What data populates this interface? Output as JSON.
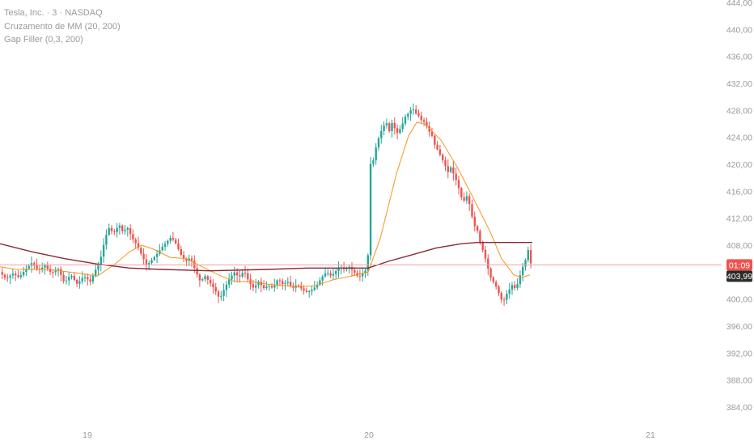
{
  "legend": {
    "symbol": "Tesla, Inc. · 3 · NASDAQ",
    "indicator_ma": "Cruzamento de MM (20, 200)",
    "indicator_gap": "Gap Filler (0,3, 200)"
  },
  "price_labels": {
    "countdown": "01:09",
    "last_price": "403,99"
  },
  "colors": {
    "up": "#26a69a",
    "down": "#ef5350",
    "ma20": "#f7931e",
    "ma200": "#8b2a35",
    "price_line": "#f2a0a0",
    "axis_text": "#9a9a9a"
  },
  "chart_data": {
    "type": "candlestick",
    "symbol": "Tesla, Inc.",
    "interval": "3",
    "exchange": "NASDAQ",
    "ylim": [
      382,
      444
    ],
    "y_ticks": [
      "444,00",
      "440,00",
      "436,00",
      "432,00",
      "428,00",
      "424,00",
      "420,00",
      "416,00",
      "412,00",
      "408,00",
      "400,00",
      "396,00",
      "392,00",
      "388,00",
      "384,00"
    ],
    "x_ticks": [
      "19",
      "20",
      "21"
    ],
    "last_price": 403.99,
    "price_points": [
      [
        0,
        404.0
      ],
      [
        8,
        403.0
      ],
      [
        16,
        403.8
      ],
      [
        24,
        403.2
      ],
      [
        32,
        404.4
      ],
      [
        40,
        405.4
      ],
      [
        48,
        404.2
      ],
      [
        56,
        405.0
      ],
      [
        64,
        403.8
      ],
      [
        72,
        404.6
      ],
      [
        80,
        402.4
      ],
      [
        88,
        403.6
      ],
      [
        96,
        402.2
      ],
      [
        104,
        403.4
      ],
      [
        112,
        402.6
      ],
      [
        118,
        404.2
      ],
      [
        124,
        405.6
      ],
      [
        128,
        407.8
      ],
      [
        132,
        409.6
      ],
      [
        136,
        410.8
      ],
      [
        140,
        409.6
      ],
      [
        144,
        410.4
      ],
      [
        148,
        411.0
      ],
      [
        152,
        410.0
      ],
      [
        158,
        410.6
      ],
      [
        164,
        409.0
      ],
      [
        170,
        408.0
      ],
      [
        176,
        406.4
      ],
      [
        182,
        405.0
      ],
      [
        188,
        405.8
      ],
      [
        194,
        406.6
      ],
      [
        200,
        407.6
      ],
      [
        206,
        408.4
      ],
      [
        212,
        409.2
      ],
      [
        218,
        408.2
      ],
      [
        224,
        406.6
      ],
      [
        230,
        405.6
      ],
      [
        236,
        406.2
      ],
      [
        242,
        404.2
      ],
      [
        248,
        402.6
      ],
      [
        254,
        403.4
      ],
      [
        260,
        402.4
      ],
      [
        266,
        401.4
      ],
      [
        272,
        400.0
      ],
      [
        278,
        401.6
      ],
      [
        284,
        403.0
      ],
      [
        290,
        404.0
      ],
      [
        296,
        403.2
      ],
      [
        302,
        404.2
      ],
      [
        308,
        402.6
      ],
      [
        314,
        401.6
      ],
      [
        320,
        402.6
      ],
      [
        326,
        401.6
      ],
      [
        332,
        402.0
      ],
      [
        338,
        401.6
      ],
      [
        344,
        403.0
      ],
      [
        350,
        402.2
      ],
      [
        356,
        402.6
      ],
      [
        362,
        401.6
      ],
      [
        368,
        402.2
      ],
      [
        374,
        401.4
      ],
      [
        380,
        401.0
      ],
      [
        386,
        401.4
      ],
      [
        392,
        402.0
      ],
      [
        398,
        403.2
      ],
      [
        404,
        404.0
      ],
      [
        410,
        403.4
      ],
      [
        416,
        404.2
      ],
      [
        420,
        404.8
      ],
      [
        426,
        404.4
      ],
      [
        432,
        404.8
      ],
      [
        438,
        404.0
      ],
      [
        444,
        403.2
      ],
      [
        450,
        404.0
      ],
      [
        455,
        404.6
      ],
      [
        457,
        419.8
      ],
      [
        462,
        420.6
      ],
      [
        466,
        423.0
      ],
      [
        470,
        424.4
      ],
      [
        474,
        425.6
      ],
      [
        478,
        426.2
      ],
      [
        482,
        424.8
      ],
      [
        486,
        426.6
      ],
      [
        490,
        424.4
      ],
      [
        494,
        425.0
      ],
      [
        498,
        426.0
      ],
      [
        502,
        427.2
      ],
      [
        506,
        427.6
      ],
      [
        510,
        428.4
      ],
      [
        514,
        427.6
      ],
      [
        518,
        427.2
      ],
      [
        522,
        426.4
      ],
      [
        526,
        426.2
      ],
      [
        530,
        425.0
      ],
      [
        534,
        424.4
      ],
      [
        538,
        422.8
      ],
      [
        542,
        422.0
      ],
      [
        546,
        421.0
      ],
      [
        550,
        420.0
      ],
      [
        554,
        418.8
      ],
      [
        558,
        419.6
      ],
      [
        562,
        418.2
      ],
      [
        566,
        417.2
      ],
      [
        570,
        415.2
      ],
      [
        574,
        414.6
      ],
      [
        578,
        415.4
      ],
      [
        582,
        413.4
      ],
      [
        586,
        411.0
      ],
      [
        590,
        410.4
      ],
      [
        594,
        408.4
      ],
      [
        598,
        407.0
      ],
      [
        602,
        405.4
      ],
      [
        606,
        403.4
      ],
      [
        610,
        402.6
      ],
      [
        614,
        401.8
      ],
      [
        618,
        400.6
      ],
      [
        622,
        399.4
      ],
      [
        626,
        400.6
      ],
      [
        630,
        401.4
      ],
      [
        634,
        402.2
      ],
      [
        638,
        401.4
      ],
      [
        642,
        403.0
      ],
      [
        646,
        404.6
      ],
      [
        650,
        405.8
      ],
      [
        654,
        407.6
      ],
      [
        658,
        403.99
      ]
    ],
    "series": [
      {
        "name": "Cruzamento de MM (20, 200) — 20",
        "color": "#f7931e",
        "values": [
          [
            0,
            404.8
          ],
          [
            20,
            404.4
          ],
          [
            60,
            404.4
          ],
          [
            100,
            403.8
          ],
          [
            120,
            403.4
          ],
          [
            140,
            405.0
          ],
          [
            160,
            407.0
          ],
          [
            175,
            408.0
          ],
          [
            190,
            407.4
          ],
          [
            210,
            406.2
          ],
          [
            230,
            406.0
          ],
          [
            250,
            404.8
          ],
          [
            270,
            403.6
          ],
          [
            290,
            402.6
          ],
          [
            310,
            402.6
          ],
          [
            330,
            402.2
          ],
          [
            350,
            402.0
          ],
          [
            370,
            401.8
          ],
          [
            390,
            402.0
          ],
          [
            410,
            402.8
          ],
          [
            440,
            403.6
          ],
          [
            455,
            404.0
          ],
          [
            470,
            409.0
          ],
          [
            490,
            418.6
          ],
          [
            505,
            424.2
          ],
          [
            515,
            426.2
          ],
          [
            525,
            426.0
          ],
          [
            545,
            423.6
          ],
          [
            565,
            419.6
          ],
          [
            585,
            415.0
          ],
          [
            605,
            410.2
          ],
          [
            620,
            406.0
          ],
          [
            635,
            403.6
          ],
          [
            645,
            403.2
          ],
          [
            655,
            403.6
          ]
        ]
      },
      {
        "name": "Cruzamento de MM (20, 200) — 200",
        "color": "#8b2a35",
        "values": [
          [
            0,
            408.2
          ],
          [
            40,
            407.0
          ],
          [
            80,
            406.0
          ],
          [
            120,
            405.2
          ],
          [
            160,
            404.6
          ],
          [
            200,
            404.4
          ],
          [
            260,
            404.2
          ],
          [
            330,
            404.4
          ],
          [
            380,
            404.6
          ],
          [
            420,
            404.6
          ],
          [
            455,
            404.6
          ],
          [
            480,
            405.6
          ],
          [
            510,
            406.6
          ],
          [
            540,
            407.6
          ],
          [
            570,
            408.2
          ],
          [
            590,
            408.4
          ],
          [
            620,
            408.4
          ],
          [
            658,
            408.4
          ]
        ]
      }
    ],
    "grid": false,
    "legend_position": "top-left"
  }
}
